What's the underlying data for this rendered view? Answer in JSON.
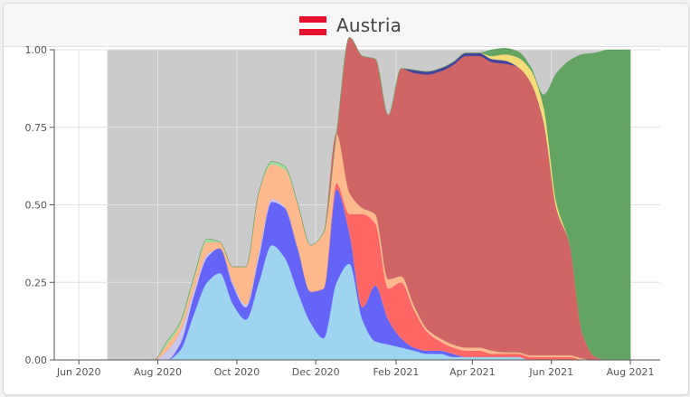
{
  "header": {
    "country": "Austria",
    "flag_colors": [
      "#e8112d",
      "#ffffff",
      "#e8112d"
    ]
  },
  "chart_data": {
    "type": "area",
    "stacked": true,
    "normalized": true,
    "title": "Austria",
    "xlabel": "",
    "ylabel": "",
    "ylim": [
      0,
      1
    ],
    "yticks": [
      "0.00",
      "0.25",
      "0.50",
      "0.75",
      "1.00"
    ],
    "xticks": [
      "Jun 2020",
      "Aug 2020",
      "Oct 2020",
      "Dec 2020",
      "Feb 2021",
      "Apr 2021",
      "Jun 2021",
      "Aug 2021"
    ],
    "background_color": "#cbcbcb",
    "grid": true,
    "x": [
      "2020-06-23",
      "2020-07-09",
      "2020-07-19",
      "2020-07-29",
      "2020-08-08",
      "2020-08-18",
      "2020-08-29",
      "2020-09-08",
      "2020-09-18",
      "2020-09-28",
      "2020-10-08",
      "2020-10-18",
      "2020-10-28",
      "2020-11-07",
      "2020-11-17",
      "2020-11-27",
      "2020-12-07",
      "2020-12-17",
      "2020-12-27",
      "2021-01-06",
      "2021-01-16",
      "2021-01-26",
      "2021-02-05",
      "2021-02-15",
      "2021-02-25",
      "2021-03-07",
      "2021-03-17",
      "2021-03-27",
      "2021-04-06",
      "2021-04-16",
      "2021-04-26",
      "2021-05-06",
      "2021-05-16",
      "2021-05-26",
      "2021-06-05",
      "2021-06-15",
      "2021-06-25",
      "2021-07-05",
      "2021-07-15",
      "2021-07-25",
      "2021-08-01"
    ],
    "series": [
      {
        "color": "#9fd4f0",
        "values": [
          0,
          0,
          0,
          0,
          0,
          0.03,
          0.15,
          0.25,
          0.28,
          0.18,
          0.13,
          0.25,
          0.37,
          0.33,
          0.22,
          0.12,
          0.07,
          0.25,
          0.31,
          0.13,
          0.06,
          0.05,
          0.04,
          0.03,
          0.02,
          0.02,
          0.01,
          0.01,
          0.01,
          0.01,
          0.01,
          0.01,
          0,
          0,
          0,
          0,
          0,
          0,
          0,
          0,
          0
        ]
      },
      {
        "color": "#6464f8",
        "values": [
          0,
          0,
          0,
          0,
          0,
          0.02,
          0.06,
          0.08,
          0.08,
          0.06,
          0.04,
          0.08,
          0.14,
          0.16,
          0.14,
          0.1,
          0.16,
          0.3,
          0.1,
          0.04,
          0.18,
          0.08,
          0.03,
          0.01,
          0.01,
          0.01,
          0.01,
          0,
          0,
          0,
          0,
          0,
          0,
          0,
          0,
          0,
          0,
          0,
          0,
          0,
          0
        ]
      },
      {
        "color": "#c9c8ea",
        "values": [
          0,
          0,
          0,
          0,
          0.03,
          0.04,
          0.02,
          0.01,
          0,
          0.01,
          0.01,
          0.02,
          0.01,
          0.005,
          0.005,
          0,
          0,
          0,
          0,
          0,
          0,
          0,
          0,
          0,
          0,
          0,
          0,
          0,
          0,
          0,
          0,
          0,
          0,
          0,
          0,
          0,
          0,
          0,
          0,
          0,
          0
        ]
      },
      {
        "color": "#ff6666",
        "values": [
          0,
          0,
          0,
          0,
          0,
          0,
          0,
          0,
          0,
          0,
          0,
          0,
          0,
          0,
          0,
          0,
          0,
          0.02,
          0.06,
          0.3,
          0.2,
          0.1,
          0.18,
          0.12,
          0.06,
          0.03,
          0.02,
          0.02,
          0.02,
          0.01,
          0.01,
          0.01,
          0.01,
          0.01,
          0.01,
          0.01,
          0,
          0,
          0,
          0,
          0
        ]
      },
      {
        "color": "#ffb98c",
        "values": [
          0,
          0,
          0,
          0,
          0.02,
          0.02,
          0.03,
          0.04,
          0.02,
          0.05,
          0.12,
          0.19,
          0.11,
          0.12,
          0.14,
          0.15,
          0.18,
          0.16,
          0.07,
          0.02,
          0.03,
          0.03,
          0.02,
          0.015,
          0.01,
          0.01,
          0.01,
          0.01,
          0.01,
          0.01,
          0.005,
          0.005,
          0.005,
          0.005,
          0.005,
          0.005,
          0.005,
          0,
          0,
          0,
          0
        ]
      },
      {
        "color": "#9adca0",
        "values": [
          0,
          0,
          0,
          0,
          0.01,
          0.01,
          0.01,
          0.01,
          0,
          0,
          0,
          0,
          0.01,
          0.01,
          0,
          0,
          0,
          0,
          0,
          0,
          0,
          0,
          0,
          0,
          0,
          0,
          0,
          0,
          0,
          0,
          0,
          0,
          0,
          0,
          0,
          0,
          0,
          0,
          0,
          0,
          0
        ]
      },
      {
        "color": "#d16565",
        "values": [
          0,
          0,
          0,
          0,
          0,
          0,
          0,
          0,
          0,
          0,
          0,
          0,
          0,
          0,
          0,
          0,
          0,
          0,
          0.5,
          0.49,
          0.5,
          0.53,
          0.67,
          0.75,
          0.82,
          0.86,
          0.9,
          0.94,
          0.94,
          0.93,
          0.93,
          0.92,
          0.88,
          0.75,
          0.47,
          0.36,
          0.08,
          0.01,
          0,
          0,
          0
        ]
      },
      {
        "color": "#44449f",
        "values": [
          0,
          0,
          0,
          0,
          0,
          0,
          0,
          0,
          0,
          0,
          0,
          0,
          0,
          0,
          0,
          0,
          0,
          0,
          0,
          0,
          0,
          0,
          0,
          0.01,
          0.01,
          0.01,
          0.01,
          0.01,
          0.01,
          0.01,
          0.01,
          0,
          0,
          0,
          0,
          0,
          0,
          0,
          0,
          0,
          0
        ]
      },
      {
        "color": "#f5dc7a",
        "values": [
          0,
          0,
          0,
          0,
          0,
          0,
          0,
          0,
          0,
          0,
          0,
          0,
          0,
          0,
          0,
          0,
          0,
          0,
          0,
          0,
          0,
          0,
          0,
          0,
          0,
          0,
          0,
          0,
          0,
          0.01,
          0.02,
          0.03,
          0.04,
          0.05,
          0.02,
          0,
          0,
          0,
          0,
          0,
          0
        ]
      },
      {
        "color": "#63a463",
        "values": [
          0,
          0,
          0,
          0,
          0,
          0,
          0,
          0,
          0,
          0,
          0,
          0,
          0,
          0,
          0,
          0,
          0,
          0,
          0,
          0,
          0,
          0,
          0,
          0,
          0,
          0,
          0,
          0,
          0,
          0.02,
          0.02,
          0.02,
          0.01,
          0.04,
          0.42,
          0.59,
          0.9,
          0.98,
          1.0,
          1.0,
          1.0
        ]
      }
    ]
  }
}
